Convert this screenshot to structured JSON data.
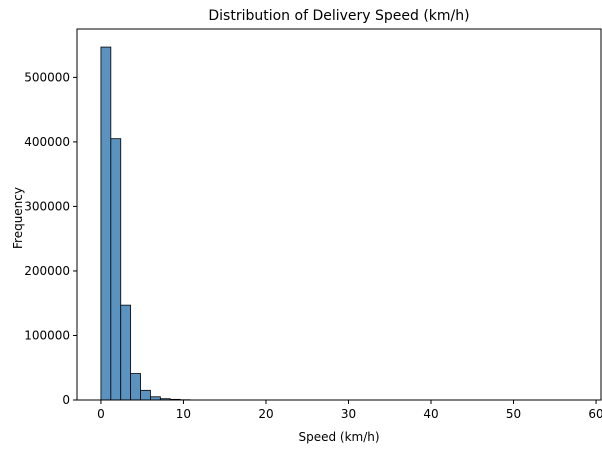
{
  "chart_data": {
    "type": "bar",
    "title": "Distribution of Delivery Speed (km/h)",
    "xlabel": "Speed (km/h)",
    "ylabel": "Frequency",
    "xlim": [
      -2.9,
      60.6
    ],
    "ylim": [
      0,
      575000
    ],
    "x_ticks": [
      0,
      10,
      20,
      30,
      40,
      50,
      60
    ],
    "x_tick_labels": [
      "0",
      "10",
      "20",
      "30",
      "40",
      "50",
      "60"
    ],
    "y_ticks": [
      0,
      100000,
      200000,
      300000,
      400000,
      500000
    ],
    "y_tick_labels": [
      "0",
      "100000",
      "200000",
      "300000",
      "400000",
      "500000"
    ],
    "grid": false,
    "bar_color": "#5b93c0",
    "edge_color": "#000000",
    "bins": [
      {
        "x0": 0.0,
        "x1": 1.2,
        "value": 547000
      },
      {
        "x0": 1.2,
        "x1": 2.4,
        "value": 405000
      },
      {
        "x0": 2.4,
        "x1": 3.6,
        "value": 147000
      },
      {
        "x0": 3.6,
        "x1": 4.8,
        "value": 41000
      },
      {
        "x0": 4.8,
        "x1": 6.0,
        "value": 15000
      },
      {
        "x0": 6.0,
        "x1": 7.2,
        "value": 5000
      },
      {
        "x0": 7.2,
        "x1": 8.4,
        "value": 2000
      },
      {
        "x0": 8.4,
        "x1": 9.6,
        "value": 1000
      },
      {
        "x0": 9.6,
        "x1": 10.8,
        "value": 400
      },
      {
        "x0": 10.8,
        "x1": 12.0,
        "value": 150
      },
      {
        "x0": 12.0,
        "x1": 13.2,
        "value": 60
      }
    ]
  }
}
